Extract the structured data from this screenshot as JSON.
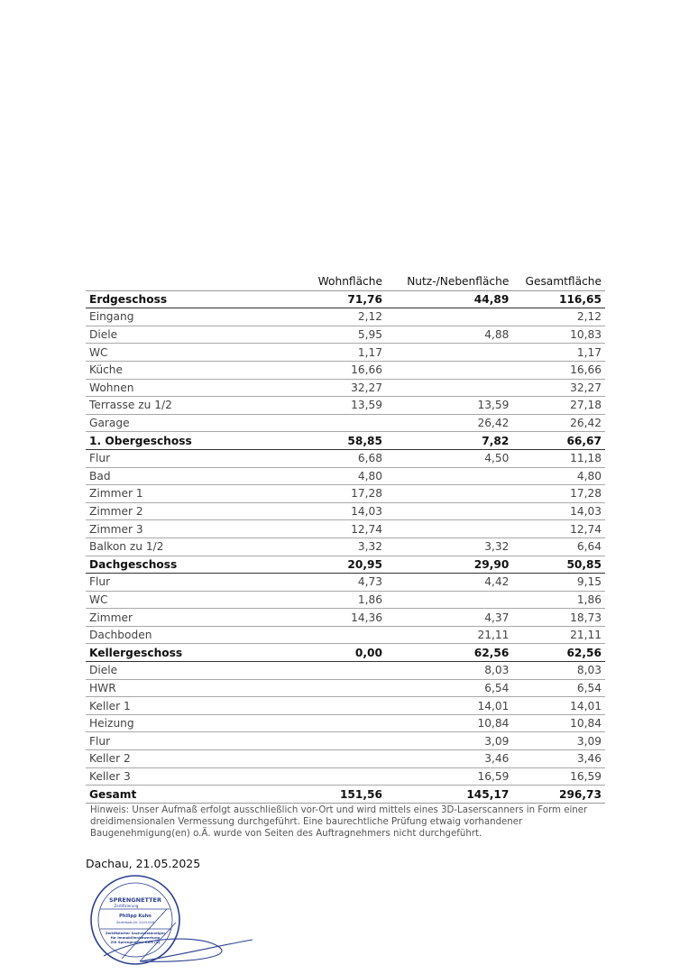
{
  "table": {
    "headers": [
      "",
      "Wohnfläche",
      "Nutz-/Nebenfläche",
      "Gesamtfläche"
    ],
    "rows": [
      {
        "type": "group",
        "label": "Erdgeschoss",
        "wohn": "71,76",
        "nutz": "44,89",
        "gesamt": "116,65"
      },
      {
        "type": "item",
        "label": "Eingang",
        "wohn": "2,12",
        "nutz": "",
        "gesamt": "2,12"
      },
      {
        "type": "item",
        "label": "Diele",
        "wohn": "5,95",
        "nutz": "4,88",
        "gesamt": "10,83"
      },
      {
        "type": "item",
        "label": "WC",
        "wohn": "1,17",
        "nutz": "",
        "gesamt": "1,17"
      },
      {
        "type": "item",
        "label": "Küche",
        "wohn": "16,66",
        "nutz": "",
        "gesamt": "16,66"
      },
      {
        "type": "item",
        "label": "Wohnen",
        "wohn": "32,27",
        "nutz": "",
        "gesamt": "32,27"
      },
      {
        "type": "item",
        "label": "Terrasse zu 1/2",
        "wohn": "13,59",
        "nutz": "13,59",
        "gesamt": "27,18"
      },
      {
        "type": "item",
        "label": "Garage",
        "wohn": "",
        "nutz": "26,42",
        "gesamt": "26,42"
      },
      {
        "type": "group",
        "label": "1. Obergeschoss",
        "wohn": "58,85",
        "nutz": "7,82",
        "gesamt": "66,67"
      },
      {
        "type": "item",
        "label": "Flur",
        "wohn": "6,68",
        "nutz": "4,50",
        "gesamt": "11,18"
      },
      {
        "type": "item",
        "label": "Bad",
        "wohn": "4,80",
        "nutz": "",
        "gesamt": "4,80"
      },
      {
        "type": "item",
        "label": "Zimmer 1",
        "wohn": "17,28",
        "nutz": "",
        "gesamt": "17,28"
      },
      {
        "type": "item",
        "label": "Zimmer 2",
        "wohn": "14,03",
        "nutz": "",
        "gesamt": "14,03"
      },
      {
        "type": "item",
        "label": "Zimmer 3",
        "wohn": "12,74",
        "nutz": "",
        "gesamt": "12,74"
      },
      {
        "type": "item",
        "label": "Balkon zu 1/2",
        "wohn": "3,32",
        "nutz": "3,32",
        "gesamt": "6,64"
      },
      {
        "type": "group",
        "label": "Dachgeschoss",
        "wohn": "20,95",
        "nutz": "29,90",
        "gesamt": "50,85"
      },
      {
        "type": "item",
        "label": "Flur",
        "wohn": "4,73",
        "nutz": "4,42",
        "gesamt": "9,15"
      },
      {
        "type": "item",
        "label": "WC",
        "wohn": "1,86",
        "nutz": "",
        "gesamt": "1,86"
      },
      {
        "type": "item",
        "label": "Zimmer",
        "wohn": "14,36",
        "nutz": "4,37",
        "gesamt": "18,73"
      },
      {
        "type": "item",
        "label": "Dachboden",
        "wohn": "",
        "nutz": "21,11",
        "gesamt": "21,11"
      },
      {
        "type": "group",
        "label": "Kellergeschoss",
        "wohn": "0,00",
        "nutz": "62,56",
        "gesamt": "62,56"
      },
      {
        "type": "item",
        "label": "Diele",
        "wohn": "",
        "nutz": "8,03",
        "gesamt": "8,03"
      },
      {
        "type": "item",
        "label": "HWR",
        "wohn": "",
        "nutz": "6,54",
        "gesamt": "6,54"
      },
      {
        "type": "item",
        "label": "Keller 1",
        "wohn": "",
        "nutz": "14,01",
        "gesamt": "14,01"
      },
      {
        "type": "item",
        "label": "Heizung",
        "wohn": "",
        "nutz": "10,84",
        "gesamt": "10,84"
      },
      {
        "type": "item",
        "label": "Flur",
        "wohn": "",
        "nutz": "3,09",
        "gesamt": "3,09"
      },
      {
        "type": "item",
        "label": "Keller 2",
        "wohn": "",
        "nutz": "3,46",
        "gesamt": "3,46"
      },
      {
        "type": "item",
        "label": "Keller 3",
        "wohn": "",
        "nutz": "16,59",
        "gesamt": "16,59"
      },
      {
        "type": "total",
        "label": "Gesamt",
        "wohn": "151,56",
        "nutz": "145,17",
        "gesamt": "296,73"
      }
    ]
  },
  "note": "Hinweis: Unser Aufmaß erfolgt ausschließlich vor-Ort und wird mittels eines 3D-Laserscanners in Form einer dreidimensionalen Vermessung durchgeführt. Eine baurechtliche Prüfung etwaig vorhandener Baugenehmigung(en) o.Ä. wurde von Seiten des Auftragnehmers nicht durchgeführt.",
  "place_date": "Dachau, 21.05.2025",
  "stamp": {
    "brand": "SPRENGNETTER",
    "sub": "Zertifizierung",
    "name": "Philipp Kuhn",
    "cert": "Zertifikats-Nr. 2103-009",
    "line1": "Zertifizierter Sachverständiger",
    "line2": "für Immobilienbewertung",
    "line3": "ZIS Sprengnetter Zert (S)",
    "color": "#2b3f8f"
  }
}
